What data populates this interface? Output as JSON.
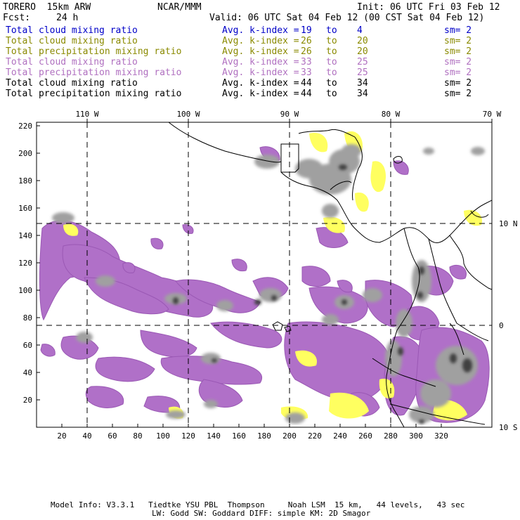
{
  "header": {
    "model": "TORERO  15km ARW",
    "org": "NCAR/MMM",
    "init": "Init: 06 UTC Fri 03 Feb 12",
    "fcst_label": "Fcst:",
    "fcst_value": "24 h",
    "valid": "Valid: 06 UTC Sat 04 Feb 12 (00 CST Sat 04 Feb 12)"
  },
  "legend": [
    {
      "field": "Total cloud mixing ratio",
      "index_label": "Avg. k-index =",
      "from": "19",
      "to_word": "to",
      "to": "4",
      "sm": "sm= 2",
      "color": "#0000c8"
    },
    {
      "field": "Total cloud mixing ratio",
      "index_label": "Avg. k-index =",
      "from": "26",
      "to_word": "to",
      "to": "20",
      "sm": "sm= 2",
      "color": "#8a8a00"
    },
    {
      "field": "Total precipitation mixing ratio",
      "index_label": "Avg. k-index =",
      "from": "26",
      "to_word": "to",
      "to": "20",
      "sm": "sm= 2",
      "color": "#8a8a00"
    },
    {
      "field": "Total cloud mixing ratio",
      "index_label": "Avg. k-index =",
      "from": "33",
      "to_word": "to",
      "to": "25",
      "sm": "sm= 2",
      "color": "#b070c0"
    },
    {
      "field": "Total precipitation mixing ratio",
      "index_label": "Avg. k-index =",
      "from": "33",
      "to_word": "to",
      "to": "25",
      "sm": "sm= 2",
      "color": "#b070c0"
    },
    {
      "field": "Total cloud mixing ratio",
      "index_label": "Avg. k-index =",
      "from": "44",
      "to_word": "to",
      "to": "34",
      "sm": "sm= 2",
      "color": "#000000"
    },
    {
      "field": "Total precipitation mixing ratio",
      "index_label": "Avg. k-index =",
      "from": "44",
      "to_word": "to",
      "to": "34",
      "sm": "sm= 2",
      "color": "#000000"
    }
  ],
  "map": {
    "lon_labels": [
      "110 W",
      "100 W",
      "90 W",
      "80 W",
      "70 W"
    ],
    "lat_labels": [
      "10 N",
      "0",
      "10 S"
    ],
    "x_ticks": [
      "20",
      "40",
      "60",
      "80",
      "100",
      "120",
      "140",
      "160",
      "180",
      "200",
      "220",
      "240",
      "260",
      "280",
      "300",
      "320"
    ],
    "y_ticks": [
      "220",
      "200",
      "180",
      "160",
      "140",
      "120",
      "100",
      "80",
      "60",
      "40",
      "20"
    ],
    "colors": {
      "cloud_high": "#a0a0a0",
      "cloud_dark": "#404040",
      "precip_mid": "#b070c8",
      "precip_low": "#ffff60",
      "border": "#000000",
      "grid": "#000000"
    }
  },
  "footer": {
    "line1": "Model Info: V3.3.1   Tiedtke YSU PBL  Thompson     Noah LSM  15 km,   44 levels,   43 sec",
    "line2": "LW: Godd SW: Goddard DIFF: simple KM: 2D Smagor"
  }
}
